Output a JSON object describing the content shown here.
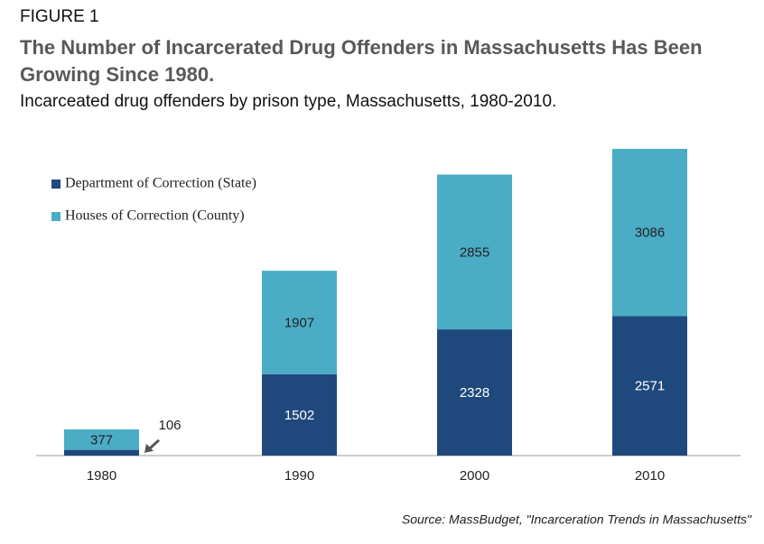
{
  "chart_data": {
    "type": "stacked_bar",
    "label": "FIGURE 1",
    "title": "The Number of Incarcerated Drug Offenders in Massachusetts Has Been Growing Since 1980.",
    "subtitle": "Incarceated drug offenders by prison type, Massachusetts, 1980-2010.",
    "source": "Source: MassBudget, \"Incarceration Trends in Massachusetts\"",
    "categories": [
      "1980",
      "1990",
      "2000",
      "2010"
    ],
    "series": [
      {
        "name": "Department of Correction (State)",
        "color": "#1f497d",
        "values": [
          106,
          1502,
          2328,
          2571
        ]
      },
      {
        "name": "Houses of Correction (County)",
        "color": "#4bacc6",
        "values": [
          377,
          1907,
          2855,
          3086
        ]
      }
    ],
    "legend": "upper left"
  }
}
